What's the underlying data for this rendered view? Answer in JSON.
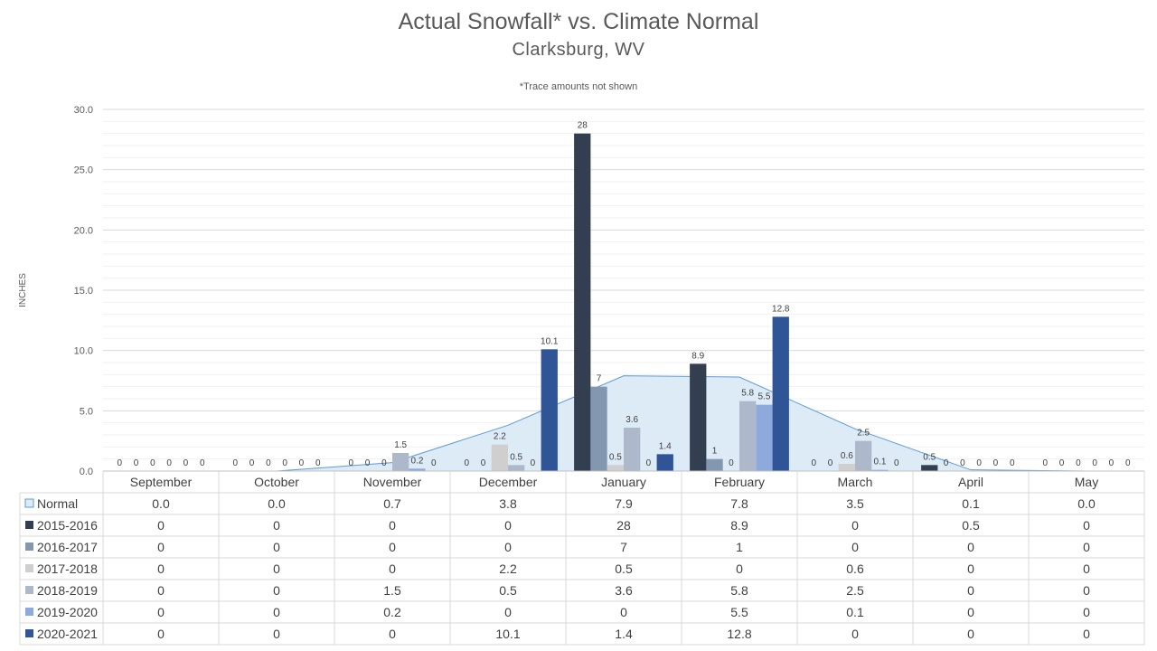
{
  "chart_data": {
    "type": "bar",
    "title": "Actual Snowfall* vs. Climate Normal",
    "subtitle": "Clarksburg,  WV",
    "note": "*Trace amounts not shown",
    "ylabel": "INCHES",
    "ylim": [
      0,
      30
    ],
    "yticks": [
      "0.0",
      "5.0",
      "10.0",
      "15.0",
      "20.0",
      "25.0",
      "30.0"
    ],
    "grid": true,
    "legend": "data-table",
    "categories": [
      "September",
      "October",
      "November",
      "December",
      "January",
      "February",
      "March",
      "April",
      "May"
    ],
    "normal": {
      "name": "Normal",
      "type": "area",
      "color": "#DDEBF7",
      "line_color": "#5B9BD5",
      "values": [
        0.0,
        0.0,
        0.7,
        3.8,
        7.9,
        7.8,
        3.5,
        0.1,
        0.0
      ],
      "labels": [
        "0.0",
        "0.0",
        "0.7",
        "3.8",
        "7.9",
        "7.8",
        "3.5",
        "0.1",
        "0.0"
      ]
    },
    "series": [
      {
        "name": "2015-2016",
        "color": "#333F50",
        "values": [
          0,
          0,
          0,
          0,
          28,
          8.9,
          0,
          0.5,
          0
        ]
      },
      {
        "name": "2016-2017",
        "color": "#8497B0",
        "values": [
          0,
          0,
          0,
          0,
          7,
          1,
          0,
          0,
          0
        ]
      },
      {
        "name": "2017-2018",
        "color": "#D0CECE",
        "values": [
          0,
          0,
          0,
          2.2,
          0.5,
          0,
          0.6,
          0,
          0
        ]
      },
      {
        "name": "2018-2019",
        "color": "#ADB9CA",
        "values": [
          0,
          0,
          1.5,
          0.5,
          3.6,
          5.8,
          2.5,
          0,
          0
        ]
      },
      {
        "name": "2019-2020",
        "color": "#8EA9DB",
        "values": [
          0,
          0,
          0.2,
          0,
          0,
          5.5,
          0.1,
          0,
          0
        ]
      },
      {
        "name": "2020-2021",
        "color": "#2F5597",
        "values": [
          0,
          0,
          0,
          10.1,
          1.4,
          12.8,
          0,
          0,
          0
        ]
      }
    ]
  }
}
